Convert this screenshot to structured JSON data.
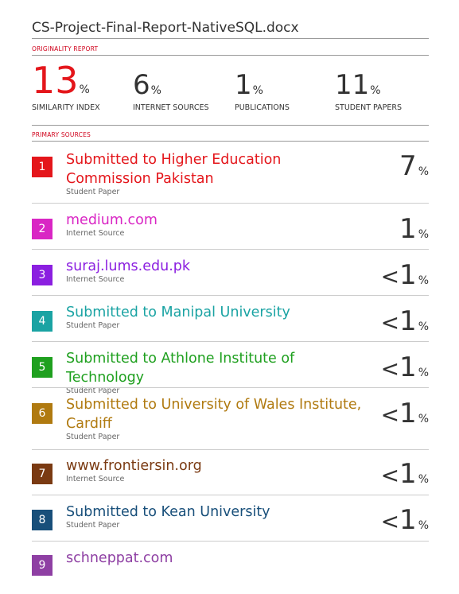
{
  "document": {
    "title": "CS-Project-Final-Report-NativeSQL.docx"
  },
  "originality": {
    "label": "ORIGINALITY REPORT",
    "stats": [
      {
        "value": "13",
        "unit": "%",
        "label": "SIMILARITY INDEX"
      },
      {
        "value": "6",
        "unit": "%",
        "label": "INTERNET SOURCES"
      },
      {
        "value": "1",
        "unit": "%",
        "label": "PUBLICATIONS"
      },
      {
        "value": "11",
        "unit": "%",
        "label": "STUDENT PAPERS"
      }
    ]
  },
  "primary_sources": {
    "label": "PRIMARY SOURCES",
    "items": [
      {
        "rank": "1",
        "name": "Submitted to Higher Education Commission Pakistan",
        "type": "Student Paper",
        "prefix": "",
        "value": "7",
        "unit": "%",
        "color": "#e4161b"
      },
      {
        "rank": "2",
        "name": "medium.com",
        "type": "Internet Source",
        "prefix": "",
        "value": "1",
        "unit": "%",
        "color": "#d926c4"
      },
      {
        "rank": "3",
        "name": "suraj.lums.edu.pk",
        "type": "Internet Source",
        "prefix": "<",
        "value": "1",
        "unit": "%",
        "color": "#8b1fe0"
      },
      {
        "rank": "4",
        "name": "Submitted to Manipal University",
        "type": "Student Paper",
        "prefix": "<",
        "value": "1",
        "unit": "%",
        "color": "#1aa3a3"
      },
      {
        "rank": "5",
        "name": "Submitted to Athlone Institute of Technology",
        "type": "Student Paper",
        "prefix": "<",
        "value": "1",
        "unit": "%",
        "color": "#1fa01f"
      },
      {
        "rank": "6",
        "name": "Submitted to University of Wales Institute, Cardiff",
        "type": "Student Paper",
        "prefix": "<",
        "value": "1",
        "unit": "%",
        "color": "#b07a10"
      },
      {
        "rank": "7",
        "name": "www.frontiersin.org",
        "type": "Internet Source",
        "prefix": "<",
        "value": "1",
        "unit": "%",
        "color": "#7a3a12"
      },
      {
        "rank": "8",
        "name": "Submitted to Kean University",
        "type": "Student Paper",
        "prefix": "<",
        "value": "1",
        "unit": "%",
        "color": "#184f7a"
      },
      {
        "rank": "9",
        "name": "schneppat.com",
        "type": "",
        "prefix": "",
        "value": "",
        "unit": "",
        "color": "#8e3fa3"
      }
    ]
  }
}
